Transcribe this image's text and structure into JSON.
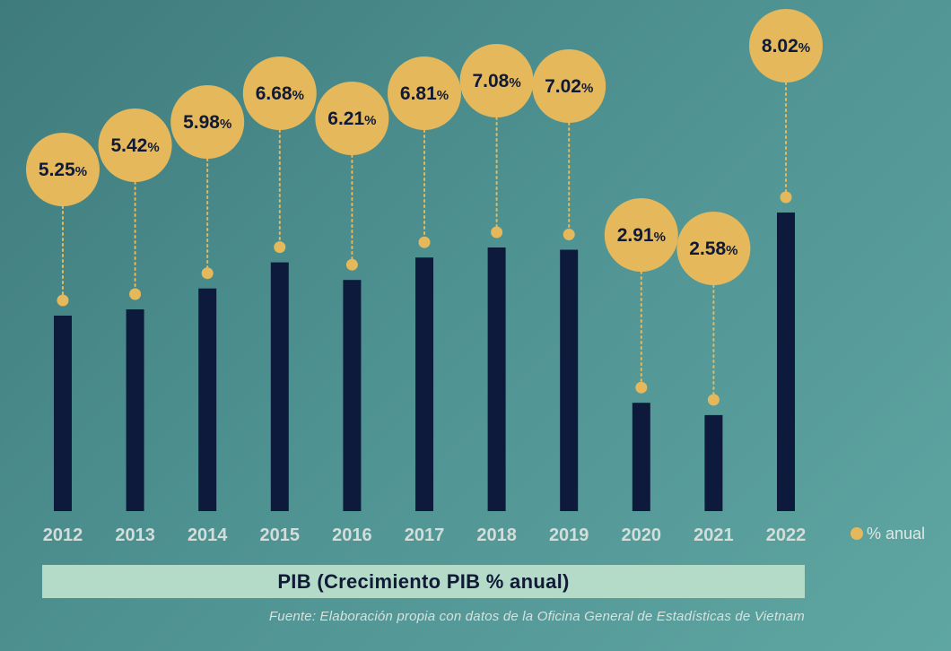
{
  "chart_data": {
    "type": "bar",
    "categories": [
      "2012",
      "2013",
      "2014",
      "2015",
      "2016",
      "2017",
      "2018",
      "2019",
      "2020",
      "2021",
      "2022"
    ],
    "values": [
      5.25,
      5.42,
      5.98,
      6.68,
      6.21,
      6.81,
      7.08,
      7.02,
      2.91,
      2.58,
      8.02
    ],
    "value_labels": [
      "5.25",
      "5.42",
      "5.98",
      "6.68",
      "6.21",
      "6.81",
      "7.08",
      "7.02",
      "2.91",
      "2.58",
      "8.02"
    ],
    "value_suffix": "%",
    "ylim": [
      0,
      8.02
    ],
    "legend": {
      "label": "% anual",
      "placement": "right-of-axis"
    },
    "title": "PIB (Crecimiento PIB % anual)",
    "source": "Fuente: Elaboración propia con datos de la Oficina General de Estadísticas de Vietnam",
    "grid": false
  },
  "colors": {
    "bar": "#0e1a3c",
    "marker": "#e5b85c",
    "title_box": "#b3dbc8",
    "text_dark": "#101a36"
  }
}
